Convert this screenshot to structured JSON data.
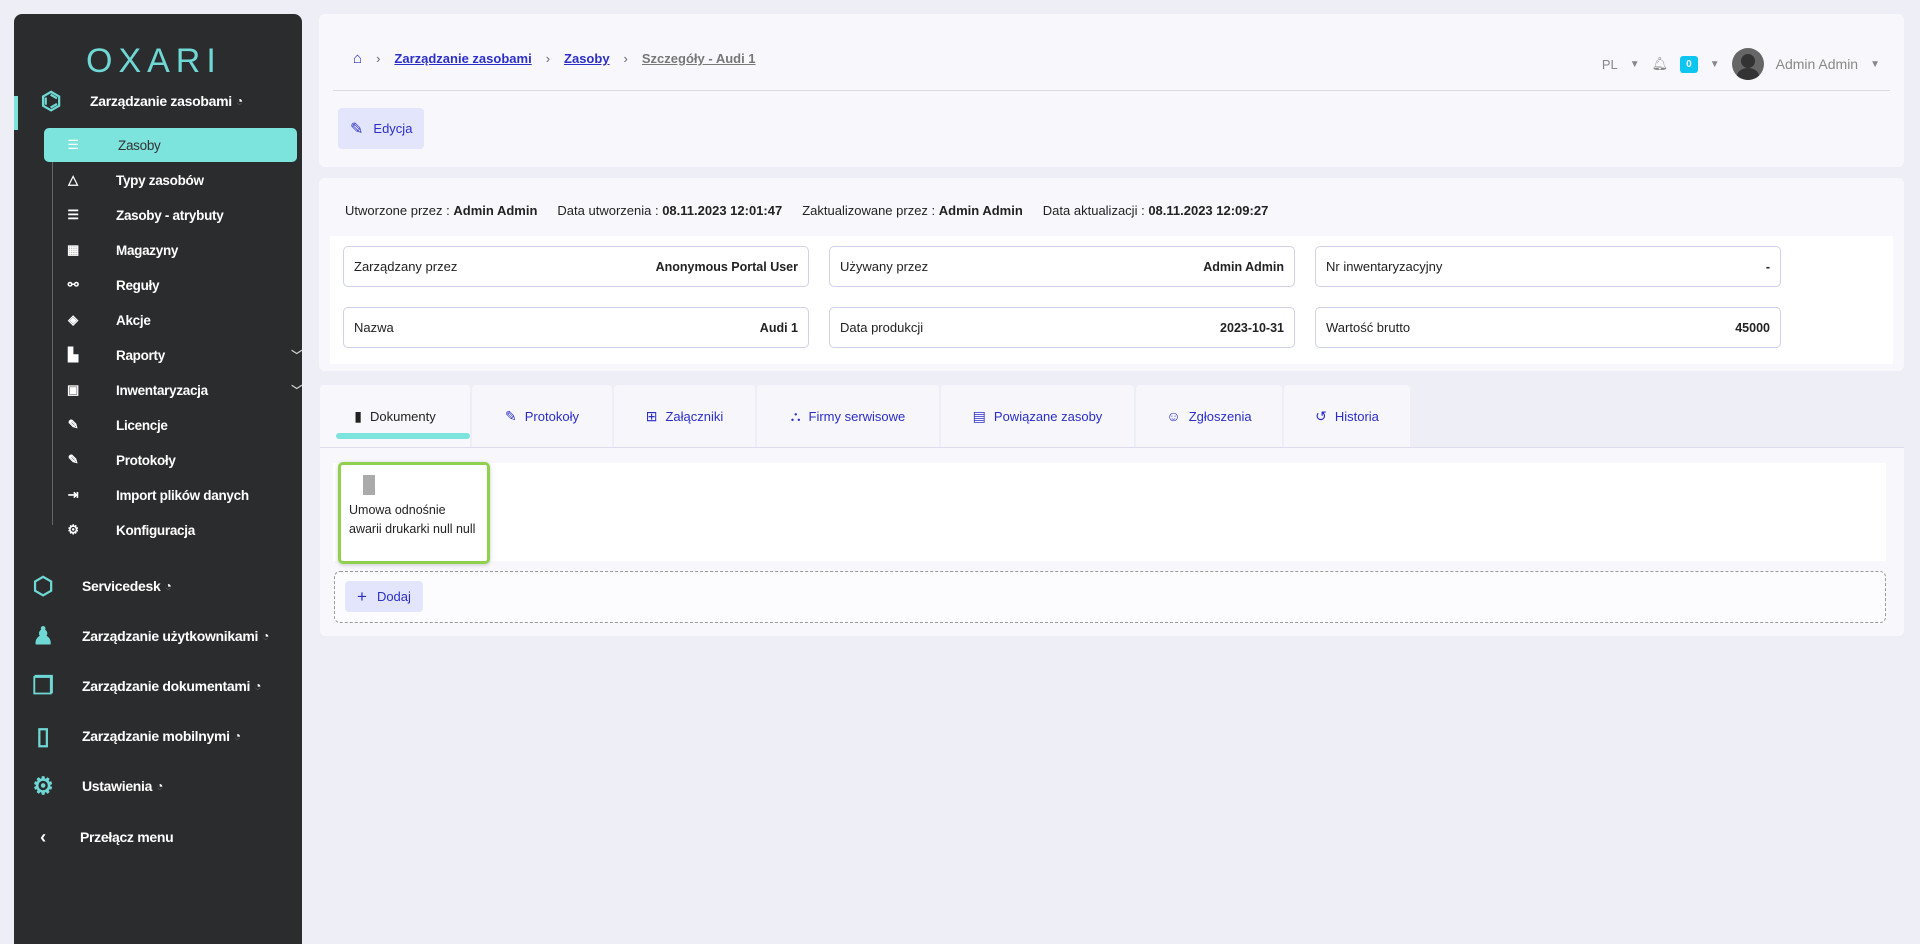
{
  "sidebar": {
    "logo": "OXARI",
    "sections": [
      {
        "label": "Zarządzanie zasobami",
        "icon": "hexagons-icon"
      },
      {
        "label": "Servicedesk",
        "icon": "headset-icon"
      },
      {
        "label": "Zarządzanie użytkownikami",
        "icon": "users-icon"
      },
      {
        "label": "Zarządzanie dokumentami",
        "icon": "documents-icon"
      },
      {
        "label": "Zarządzanie mobilnymi",
        "icon": "mobile-icon"
      },
      {
        "label": "Ustawienia",
        "icon": "settings-icon"
      }
    ],
    "items": [
      {
        "label": "Zasoby",
        "icon": "list-icon"
      },
      {
        "label": "Typy zasobów",
        "icon": "shapes-icon"
      },
      {
        "label": "Zasoby - atrybuty",
        "icon": "list-icon"
      },
      {
        "label": "Magazyny",
        "icon": "building-icon"
      },
      {
        "label": "Reguły",
        "icon": "flow-icon"
      },
      {
        "label": "Akcje",
        "icon": "target-icon"
      },
      {
        "label": "Raporty",
        "icon": "chart-icon"
      },
      {
        "label": "Inwentaryzacja",
        "icon": "box-icon"
      },
      {
        "label": "Licencje",
        "icon": "sign-icon"
      },
      {
        "label": "Protokoły",
        "icon": "sign-icon"
      },
      {
        "label": "Import plików danych",
        "icon": "import-icon"
      },
      {
        "label": "Konfiguracja",
        "icon": "gears-icon"
      }
    ],
    "toggle": "Przełącz menu"
  },
  "header": {
    "breadcrumb": [
      "Zarządzanie zasobami",
      "Zasoby",
      "Szczegóły - Audi 1"
    ],
    "lang": "PL",
    "notifications": "0",
    "user": "Admin Admin",
    "edit": "Edycja"
  },
  "meta": {
    "created_by_label": "Utworzone przez :",
    "created_by": "Admin Admin",
    "created_label": "Data utworzenia :",
    "created": "08.11.2023 12:01:47",
    "updated_by_label": "Zaktualizowane przez :",
    "updated_by": "Admin Admin",
    "updated_label": "Data aktualizacji :",
    "updated": "08.11.2023 12:09:27"
  },
  "fields": [
    {
      "label": "Zarządzany przez",
      "value": "Anonymous Portal User"
    },
    {
      "label": "Używany przez",
      "value": "Admin Admin"
    },
    {
      "label": "Nr inwentaryzacyjny",
      "value": "-"
    },
    {
      "label": "Nazwa",
      "value": "Audi 1"
    },
    {
      "label": "Data produkcji",
      "value": "2023-10-31"
    },
    {
      "label": "Wartość brutto",
      "value": "45000"
    }
  ],
  "tabs": [
    "Dokumenty",
    "Protokoły",
    "Załączniki",
    "Firmy serwisowe",
    "Powiązane zasoby",
    "Zgłoszenia",
    "Historia"
  ],
  "documents": [
    {
      "name": "Umowa odnośnie awarii drukarki null null"
    }
  ],
  "add": "Dodaj",
  "colors": {
    "accent": "#7de3dd",
    "link": "#2c2ec8",
    "sidebar": "#2b2c2e",
    "highlight": "#8fd14f"
  }
}
